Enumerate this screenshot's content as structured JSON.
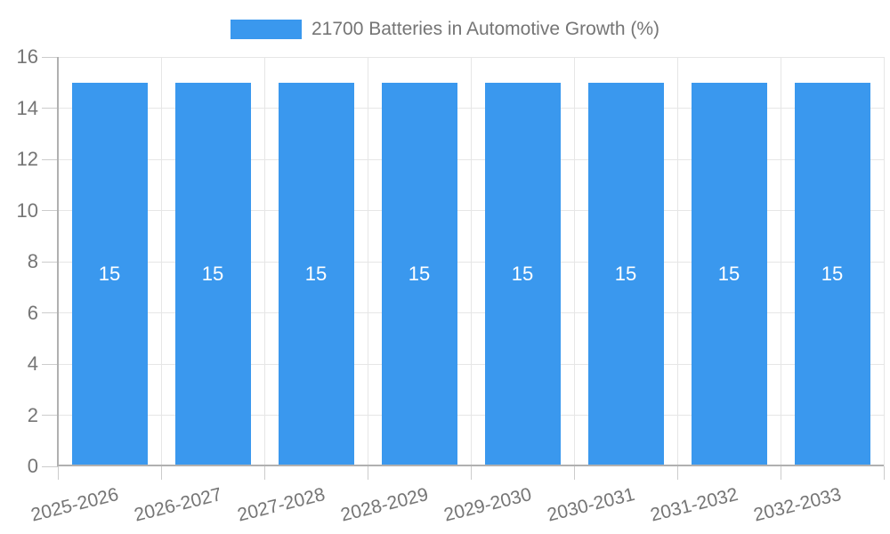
{
  "legend": {
    "position": "top",
    "label": "21700 Batteries in Automotive Growth (%)"
  },
  "chart_data": {
    "type": "bar",
    "title": "21700 Batteries in Automotive Growth (%)",
    "categories": [
      "2025-2026",
      "2026-2027",
      "2027-2028",
      "2028-2029",
      "2029-2030",
      "2030-2031",
      "2031-2032",
      "2032-2033"
    ],
    "series": [
      {
        "name": "21700 Batteries in Automotive Growth (%)",
        "values": [
          15,
          15,
          15,
          15,
          15,
          15,
          15,
          15
        ]
      }
    ],
    "bar_value_labels": [
      "15",
      "15",
      "15",
      "15",
      "15",
      "15",
      "15",
      "15"
    ],
    "xlabel": "",
    "ylabel": "",
    "ylim": [
      0,
      16
    ],
    "yticks": [
      0,
      2,
      4,
      6,
      8,
      10,
      12,
      14,
      16
    ],
    "grid": true,
    "legend_position": "top",
    "x_label_rotation_deg": -14
  },
  "colors": {
    "bar": "#3A98EE",
    "bar_label": "#FFFFFF",
    "axis_text": "#757575",
    "legend_text": "#757575",
    "grid_line": "#E6E6E6",
    "axis_line": "#B0B0B0",
    "tick": "#CCCCCC",
    "background": "#FFFFFF"
  }
}
